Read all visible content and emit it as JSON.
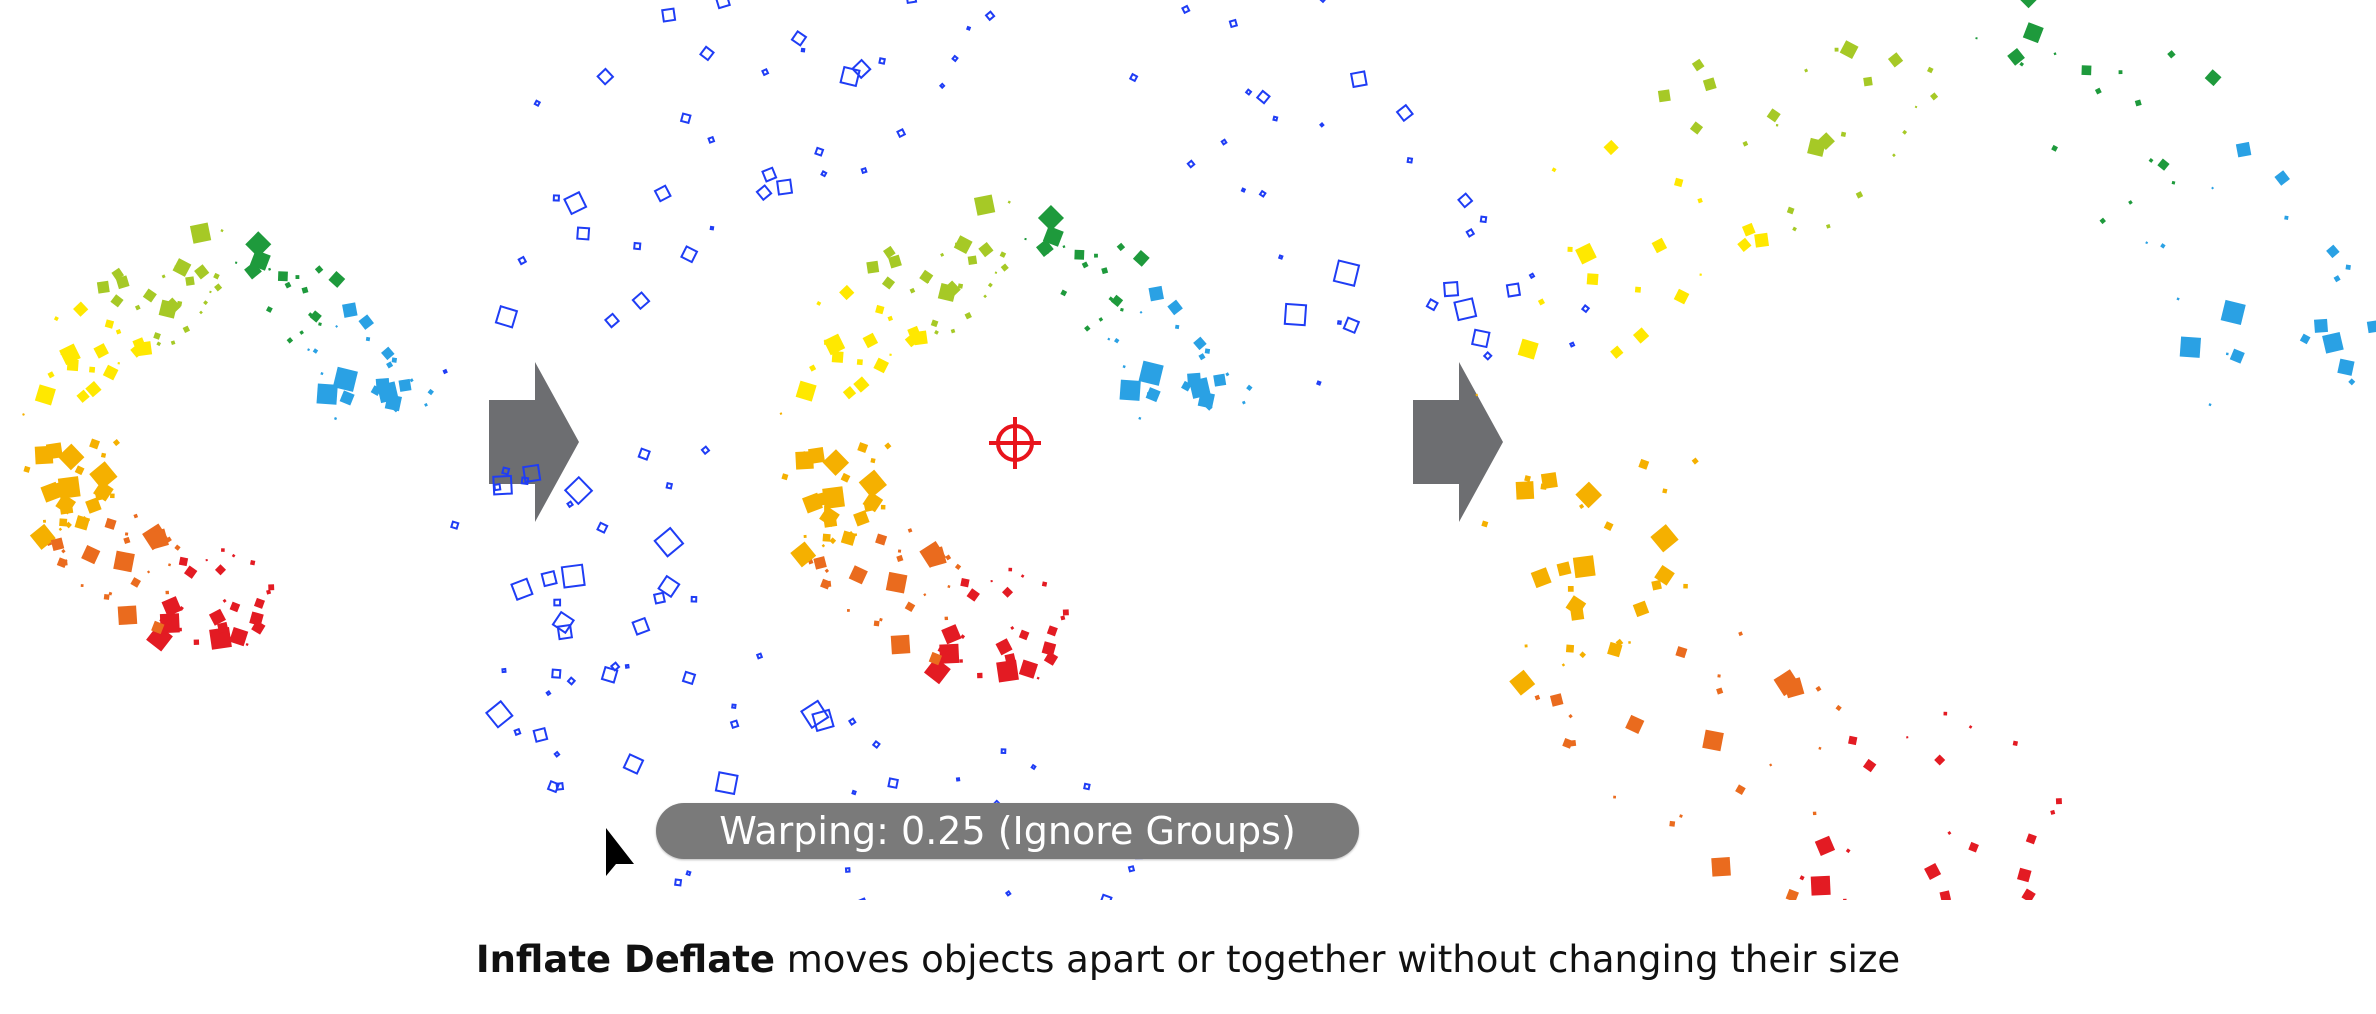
{
  "tooltip": {
    "label": "Warping: 0.25 (Ignore Groups)"
  },
  "caption": {
    "bold": "Inflate Deflate",
    "rest": " moves objects apart or together without changing their size"
  },
  "panels": [
    {
      "name": "before",
      "state": "original ring of colored squares"
    },
    {
      "name": "during",
      "state": "inflating, blue outline preview"
    },
    {
      "name": "after",
      "state": "inflated ring"
    }
  ],
  "colors": {
    "ring": [
      "#2aa1e4",
      "#1e9a3c",
      "#a6c926",
      "#ffe800",
      "#f5b000",
      "#ea6b1e",
      "#e31b23"
    ],
    "preview_outline": "#1f3df5",
    "crosshair": "#e8141c",
    "arrow": "#6d6e71",
    "tooltip_bg": "#7a7a7a"
  },
  "icons": {
    "crosshair": "crosshair-target-icon",
    "cursor": "mouse-pointer-icon",
    "arrow": "right-arrow-icon"
  }
}
